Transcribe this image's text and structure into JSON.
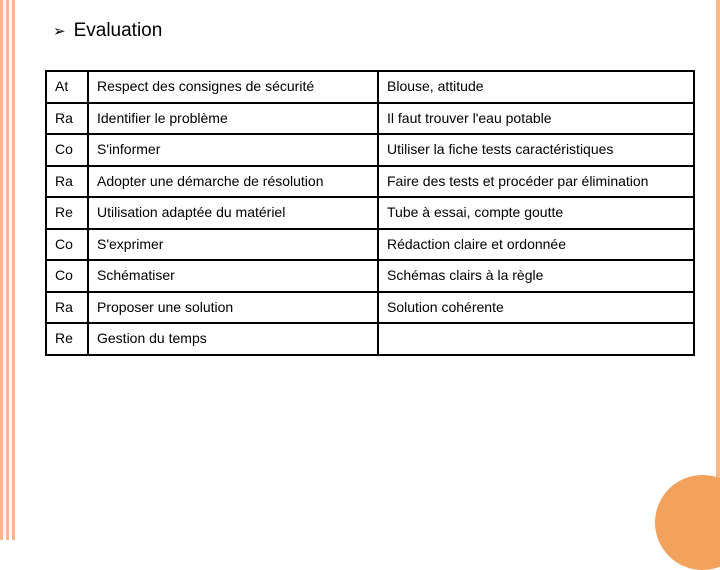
{
  "heading": "Evaluation",
  "colors": {
    "bar": "#f9b58b",
    "circle": "#f2a25c",
    "border": "#000000",
    "bg": "#ffffff"
  },
  "rows": [
    {
      "code": "At",
      "desc": "Respect des  consignes de sécurité",
      "comment": "Blouse, attitude"
    },
    {
      "code": "Ra",
      "desc": "Identifier le problème",
      "comment": "Il faut trouver l'eau potable"
    },
    {
      "code": "Co",
      "desc": "S'informer",
      "comment": "Utiliser la fiche tests caractéristiques"
    },
    {
      "code": "Ra",
      "desc": "Adopter une démarche de résolution",
      "comment": "Faire des tests et procéder par élimination"
    },
    {
      "code": "Re",
      "desc": "Utilisation adaptée du matériel",
      "comment": "Tube à essai, compte goutte"
    },
    {
      "code": "Co",
      "desc": "S'exprimer",
      "comment": "Rédaction claire et ordonnée"
    },
    {
      "code": "Co",
      "desc": "Schématiser",
      "comment": "Schémas clairs à la règle"
    },
    {
      "code": "Ra",
      "desc": "Proposer une solution",
      "comment": "Solution cohérente"
    },
    {
      "code": "Re",
      "desc": "Gestion du temps",
      "comment": ""
    }
  ]
}
